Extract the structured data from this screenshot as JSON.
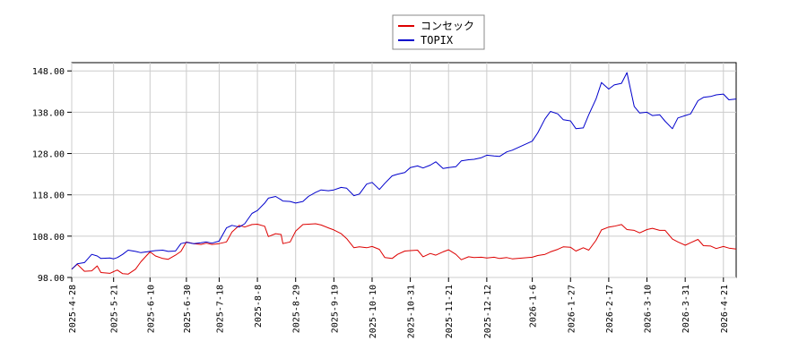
{
  "chart_data": {
    "type": "line",
    "title": "",
    "xlabel": "",
    "ylabel": "",
    "ylim": [
      98,
      150
    ],
    "grid": true,
    "legend_position": "top-center",
    "y_ticks": [
      "98.00",
      "108.00",
      "118.00",
      "128.00",
      "138.00",
      "148.00"
    ],
    "x_ticks": [
      "2025-4-28",
      "2025-5-21",
      "2025-6-10",
      "2025-6-30",
      "2025-7-18",
      "2025-8-8",
      "2025-8-29",
      "2025-9-19",
      "2025-10-10",
      "2025-10-31",
      "2025-11-21",
      "2025-12-12",
      "2026-1-6",
      "2026-1-27",
      "2026-2-17",
      "2026-3-10",
      "2026-3-31",
      "2026-4-21"
    ],
    "x_end": "2026-4-28",
    "series": [
      {
        "name": "コンセック",
        "color": "#dd0000",
        "points": [
          [
            "2025-4-28",
            100.0
          ],
          [
            "2025-5-1",
            101.2
          ],
          [
            "2025-5-5",
            99.5
          ],
          [
            "2025-5-9",
            99.6
          ],
          [
            "2025-5-12",
            100.8
          ],
          [
            "2025-5-14",
            99.2
          ],
          [
            "2025-5-19",
            99.0
          ],
          [
            "2025-5-21",
            99.4
          ],
          [
            "2025-5-23",
            99.8
          ],
          [
            "2025-5-26",
            98.9
          ],
          [
            "2025-5-29",
            98.8
          ],
          [
            "2025-6-2",
            100.0
          ],
          [
            "2025-6-5",
            101.8
          ],
          [
            "2025-6-10",
            104.2
          ],
          [
            "2025-6-13",
            103.2
          ],
          [
            "2025-6-17",
            102.6
          ],
          [
            "2025-6-20",
            102.4
          ],
          [
            "2025-6-24",
            103.4
          ],
          [
            "2025-6-27",
            104.3
          ],
          [
            "2025-6-30",
            106.6
          ],
          [
            "2025-7-4",
            106.2
          ],
          [
            "2025-7-8",
            106.0
          ],
          [
            "2025-7-11",
            106.3
          ],
          [
            "2025-7-14",
            106.0
          ],
          [
            "2025-7-18",
            106.2
          ],
          [
            "2025-7-22",
            106.6
          ],
          [
            "2025-7-25",
            109.0
          ],
          [
            "2025-7-29",
            110.6
          ],
          [
            "2025-8-1",
            110.2
          ],
          [
            "2025-8-5",
            110.8
          ],
          [
            "2025-8-8",
            110.9
          ],
          [
            "2025-8-12",
            110.4
          ],
          [
            "2025-8-14",
            107.9
          ],
          [
            "2025-8-18",
            108.6
          ],
          [
            "2025-8-21",
            108.4
          ],
          [
            "2025-8-22",
            106.2
          ],
          [
            "2025-8-26",
            106.6
          ],
          [
            "2025-8-29",
            109.2
          ],
          [
            "2025-9-2",
            110.8
          ],
          [
            "2025-9-5",
            110.9
          ],
          [
            "2025-9-9",
            111.0
          ],
          [
            "2025-9-12",
            110.7
          ],
          [
            "2025-9-16",
            110.0
          ],
          [
            "2025-9-19",
            109.5
          ],
          [
            "2025-9-23",
            108.6
          ],
          [
            "2025-9-26",
            107.4
          ],
          [
            "2025-9-30",
            105.2
          ],
          [
            "2025-10-3",
            105.4
          ],
          [
            "2025-10-7",
            105.2
          ],
          [
            "2025-10-10",
            105.5
          ],
          [
            "2025-10-14",
            104.8
          ],
          [
            "2025-10-17",
            102.8
          ],
          [
            "2025-10-21",
            102.6
          ],
          [
            "2025-10-24",
            103.6
          ],
          [
            "2025-10-28",
            104.4
          ],
          [
            "2025-10-31",
            104.5
          ],
          [
            "2025-11-4",
            104.6
          ],
          [
            "2025-11-7",
            103.0
          ],
          [
            "2025-11-11",
            103.8
          ],
          [
            "2025-11-14",
            103.4
          ],
          [
            "2025-11-18",
            104.2
          ],
          [
            "2025-11-21",
            104.7
          ],
          [
            "2025-11-25",
            103.6
          ],
          [
            "2025-11-28",
            102.3
          ],
          [
            "2025-12-2",
            103.0
          ],
          [
            "2025-12-5",
            102.8
          ],
          [
            "2025-12-9",
            102.9
          ],
          [
            "2025-12-12",
            102.7
          ],
          [
            "2025-12-16",
            102.9
          ],
          [
            "2025-12-19",
            102.6
          ],
          [
            "2025-12-23",
            102.8
          ],
          [
            "2025-12-26",
            102.5
          ],
          [
            "2026-1-6",
            102.9
          ],
          [
            "2026-1-9",
            103.3
          ],
          [
            "2026-1-13",
            103.6
          ],
          [
            "2026-1-16",
            104.2
          ],
          [
            "2026-1-20",
            104.8
          ],
          [
            "2026-1-23",
            105.4
          ],
          [
            "2026-1-27",
            105.3
          ],
          [
            "2026-1-30",
            104.4
          ],
          [
            "2026-2-3",
            105.2
          ],
          [
            "2026-2-6",
            104.6
          ],
          [
            "2026-2-10",
            107.0
          ],
          [
            "2026-2-13",
            109.5
          ],
          [
            "2026-2-17",
            110.2
          ],
          [
            "2026-2-20",
            110.4
          ],
          [
            "2026-2-24",
            110.8
          ],
          [
            "2026-2-27",
            109.6
          ],
          [
            "2026-3-3",
            109.4
          ],
          [
            "2026-3-6",
            108.8
          ],
          [
            "2026-3-10",
            109.6
          ],
          [
            "2026-3-13",
            109.9
          ],
          [
            "2026-3-17",
            109.4
          ],
          [
            "2026-3-20",
            109.4
          ],
          [
            "2026-3-24",
            107.3
          ],
          [
            "2026-3-27",
            106.6
          ],
          [
            "2026-3-31",
            105.8
          ],
          [
            "2026-4-3",
            106.4
          ],
          [
            "2026-4-7",
            107.2
          ],
          [
            "2026-4-10",
            105.7
          ],
          [
            "2026-4-14",
            105.6
          ],
          [
            "2026-4-17",
            105.0
          ],
          [
            "2026-4-21",
            105.5
          ],
          [
            "2026-4-24",
            105.1
          ],
          [
            "2026-4-28",
            104.9
          ]
        ]
      },
      {
        "name": "TOPIX",
        "color": "#0000cc",
        "points": [
          [
            "2025-4-28",
            100.0
          ],
          [
            "2025-5-1",
            101.3
          ],
          [
            "2025-5-5",
            101.6
          ],
          [
            "2025-5-9",
            103.6
          ],
          [
            "2025-5-12",
            103.2
          ],
          [
            "2025-5-14",
            102.6
          ],
          [
            "2025-5-19",
            102.7
          ],
          [
            "2025-5-21",
            102.5
          ],
          [
            "2025-5-23",
            102.8
          ],
          [
            "2025-5-26",
            103.6
          ],
          [
            "2025-5-29",
            104.6
          ],
          [
            "2025-6-2",
            104.3
          ],
          [
            "2025-6-5",
            104.0
          ],
          [
            "2025-6-10",
            104.3
          ],
          [
            "2025-6-13",
            104.5
          ],
          [
            "2025-6-17",
            104.6
          ],
          [
            "2025-6-20",
            104.3
          ],
          [
            "2025-6-24",
            104.4
          ],
          [
            "2025-6-27",
            106.2
          ],
          [
            "2025-6-30",
            106.5
          ],
          [
            "2025-7-4",
            106.2
          ],
          [
            "2025-7-8",
            106.4
          ],
          [
            "2025-7-11",
            106.6
          ],
          [
            "2025-7-14",
            106.3
          ],
          [
            "2025-7-18",
            106.8
          ],
          [
            "2025-7-22",
            110.0
          ],
          [
            "2025-7-25",
            110.6
          ],
          [
            "2025-7-29",
            110.2
          ],
          [
            "2025-8-1",
            111.0
          ],
          [
            "2025-8-5",
            113.5
          ],
          [
            "2025-8-8",
            114.2
          ],
          [
            "2025-8-12",
            116.0
          ],
          [
            "2025-8-14",
            117.2
          ],
          [
            "2025-8-18",
            117.6
          ],
          [
            "2025-8-21",
            116.8
          ],
          [
            "2025-8-22",
            116.5
          ],
          [
            "2025-8-26",
            116.4
          ],
          [
            "2025-8-29",
            116.0
          ],
          [
            "2025-9-2",
            116.4
          ],
          [
            "2025-9-5",
            117.6
          ],
          [
            "2025-9-9",
            118.6
          ],
          [
            "2025-9-12",
            119.2
          ],
          [
            "2025-9-16",
            119.0
          ],
          [
            "2025-9-19",
            119.2
          ],
          [
            "2025-9-23",
            119.8
          ],
          [
            "2025-9-26",
            119.6
          ],
          [
            "2025-9-30",
            117.8
          ],
          [
            "2025-10-3",
            118.2
          ],
          [
            "2025-10-7",
            120.6
          ],
          [
            "2025-10-10",
            121.0
          ],
          [
            "2025-10-14",
            119.3
          ],
          [
            "2025-10-17",
            120.8
          ],
          [
            "2025-10-21",
            122.6
          ],
          [
            "2025-10-24",
            123.0
          ],
          [
            "2025-10-28",
            123.4
          ],
          [
            "2025-10-31",
            124.6
          ],
          [
            "2025-11-4",
            125.0
          ],
          [
            "2025-11-7",
            124.5
          ],
          [
            "2025-11-11",
            125.2
          ],
          [
            "2025-11-14",
            126.0
          ],
          [
            "2025-11-18",
            124.4
          ],
          [
            "2025-11-21",
            124.6
          ],
          [
            "2025-11-25",
            124.8
          ],
          [
            "2025-11-28",
            126.2
          ],
          [
            "2025-12-2",
            126.5
          ],
          [
            "2025-12-5",
            126.6
          ],
          [
            "2025-12-9",
            127.0
          ],
          [
            "2025-12-12",
            127.6
          ],
          [
            "2025-12-16",
            127.4
          ],
          [
            "2025-12-19",
            127.3
          ],
          [
            "2025-12-23",
            128.4
          ],
          [
            "2025-12-26",
            128.8
          ],
          [
            "2026-1-6",
            131.0
          ],
          [
            "2026-1-9",
            133.0
          ],
          [
            "2026-1-13",
            136.4
          ],
          [
            "2026-1-16",
            138.2
          ],
          [
            "2026-1-20",
            137.6
          ],
          [
            "2026-1-23",
            136.2
          ],
          [
            "2026-1-27",
            135.9
          ],
          [
            "2026-1-30",
            134.0
          ],
          [
            "2026-2-3",
            134.2
          ],
          [
            "2026-2-6",
            137.4
          ],
          [
            "2026-2-10",
            141.2
          ],
          [
            "2026-2-13",
            145.2
          ],
          [
            "2026-2-17",
            143.6
          ],
          [
            "2026-2-20",
            144.6
          ],
          [
            "2026-2-24",
            145.0
          ],
          [
            "2026-2-27",
            147.6
          ],
          [
            "2026-3-3",
            139.4
          ],
          [
            "2026-3-6",
            137.8
          ],
          [
            "2026-3-10",
            138.0
          ],
          [
            "2026-3-13",
            137.2
          ],
          [
            "2026-3-17",
            137.4
          ],
          [
            "2026-3-20",
            135.8
          ],
          [
            "2026-3-24",
            134.0
          ],
          [
            "2026-3-27",
            136.6
          ],
          [
            "2026-3-31",
            137.2
          ],
          [
            "2026-4-3",
            137.6
          ],
          [
            "2026-4-7",
            140.8
          ],
          [
            "2026-4-10",
            141.6
          ],
          [
            "2026-4-14",
            141.8
          ],
          [
            "2026-4-17",
            142.2
          ],
          [
            "2026-4-21",
            142.4
          ],
          [
            "2026-4-24",
            141.0
          ],
          [
            "2026-4-28",
            141.2
          ]
        ]
      }
    ]
  }
}
